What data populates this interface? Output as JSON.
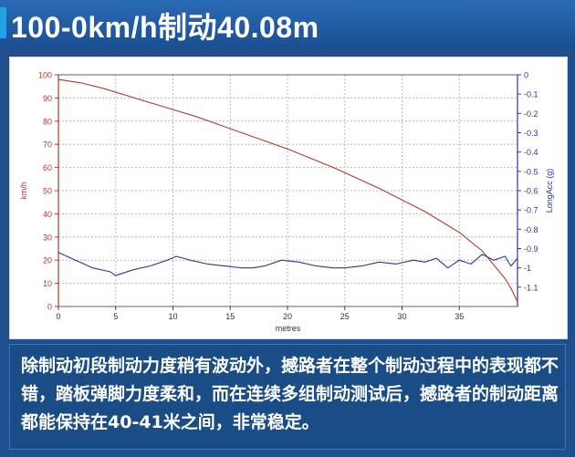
{
  "header": {
    "title": "100-0km/h制动40.08m"
  },
  "caption": {
    "text": "除制动初段制动力度稍有波动外，撼路者在整个制动过程中的表现都不错，踏板弹脚力度柔和，而在连续多组制动测试后，撼路者的制动距离都能保持在40-41米之间，非常稳定。"
  },
  "colors": {
    "speed_line": "#b03a2e",
    "accel_line": "#2b3a8f",
    "left_axis": "#b03a2e",
    "right_axis": "#2b3a8f",
    "grid": "#b8b8b8"
  },
  "chart_data": {
    "type": "line",
    "title": "",
    "xlabel": "metres",
    "ylabel_left": "km/h",
    "ylabel_right": "LongAcc (g)",
    "xlim": [
      0,
      40.08
    ],
    "ylim_left": [
      0,
      100
    ],
    "ylim_right": [
      -1.2,
      0
    ],
    "x_ticks": [
      0,
      5,
      10,
      15,
      20,
      25,
      30,
      35
    ],
    "y_left_ticks": [
      0,
      10,
      20,
      30,
      40,
      50,
      60,
      70,
      80,
      90,
      100
    ],
    "y_right_ticks": [
      0,
      -0.1,
      -0.2,
      -0.3,
      -0.4,
      -0.5,
      -0.6,
      -0.7,
      -0.8,
      -0.9,
      -1,
      -1.1
    ],
    "y_right_tick_labels": [
      "0",
      "-0.1",
      "-0.2",
      "-0.3",
      "-0.4",
      "-0.5",
      "-0.6",
      "-0.7",
      "-0.8",
      "-0.9",
      "-1",
      "-1.1"
    ],
    "grid": true,
    "series": [
      {
        "axis": "left",
        "x": [
          0,
          2,
          4,
          6,
          8,
          10,
          12,
          14,
          16,
          18,
          20,
          22,
          24,
          26,
          28,
          30,
          32,
          33,
          34,
          35,
          36,
          37,
          38,
          39,
          39.5,
          40.08
        ],
        "values": [
          98,
          96.5,
          94,
          91,
          88,
          85,
          82,
          78.5,
          75,
          71.5,
          68,
          64,
          60,
          55.5,
          51,
          46,
          41,
          38,
          35,
          32,
          28,
          24,
          18,
          12,
          8,
          2
        ]
      },
      {
        "axis": "right",
        "x": [
          0,
          1.5,
          3,
          4.5,
          5,
          6.5,
          8,
          9.5,
          10.3,
          11.5,
          13,
          14.5,
          16,
          17,
          18,
          19.5,
          21,
          22.5,
          24,
          25,
          26.5,
          28,
          29.5,
          31,
          32,
          33,
          34,
          35,
          36,
          37,
          38,
          39,
          39.5,
          40.08
        ],
        "values": [
          -0.92,
          -0.96,
          -1.0,
          -1.02,
          -1.04,
          -1.01,
          -0.99,
          -0.96,
          -0.94,
          -0.96,
          -0.98,
          -0.99,
          -1.0,
          -1.0,
          -0.99,
          -0.96,
          -0.97,
          -0.99,
          -1.0,
          -1.0,
          -0.99,
          -0.97,
          -0.98,
          -0.96,
          -0.97,
          -0.95,
          -1.0,
          -0.96,
          -0.98,
          -0.93,
          -0.96,
          -0.94,
          -0.99,
          -0.95
        ]
      }
    ]
  }
}
